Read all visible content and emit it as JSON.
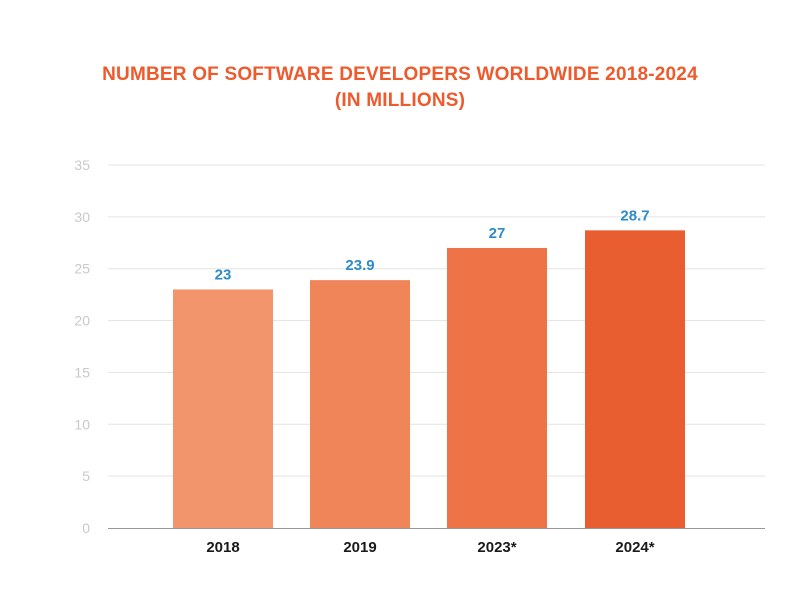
{
  "chart_data": {
    "type": "bar",
    "title": "NUMBER OF SOFTWARE DEVELOPERS WORLDWIDE 2018-2024",
    "subtitle": "(IN MILLIONS)",
    "categories": [
      "2018",
      "2019",
      "2023*",
      "2024*"
    ],
    "values": [
      23,
      23.9,
      27,
      28.7
    ],
    "data_labels": [
      "23",
      "23.9",
      "27",
      "28.7"
    ],
    "xlabel": "",
    "ylabel": "",
    "ylim": [
      0,
      35
    ],
    "yticks": [
      0,
      5,
      10,
      15,
      20,
      25,
      30,
      35
    ],
    "grid": true,
    "legend": "none",
    "bar_colors": [
      "#f2956c",
      "#f08559",
      "#ee7346",
      "#e95e31"
    ],
    "label_color": "#2e8bc8",
    "title_color": "#ee5a2c",
    "grid_color": "#e3e3e3",
    "axis_color": "#9a9a9a"
  }
}
